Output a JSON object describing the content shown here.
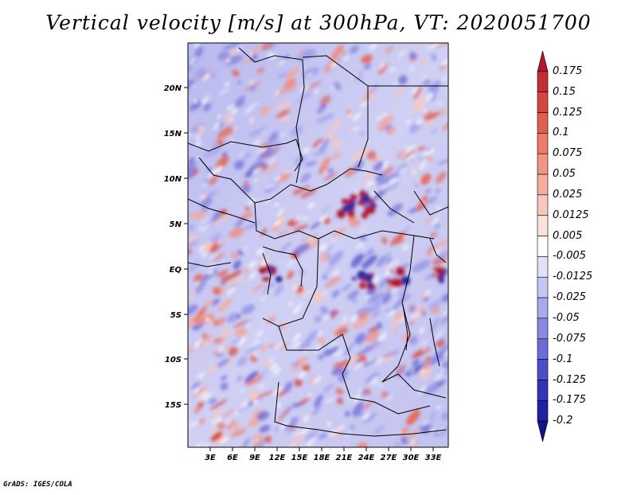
{
  "title": "Vertical velocity [m/s] at 300hPa, VT: 2020051700",
  "footer": "GrADS: IGES/COLA",
  "map": {
    "lat_labels": [
      "20N",
      "15N",
      "10N",
      "5N",
      "EQ",
      "5S",
      "10S",
      "15S"
    ],
    "lon_labels": [
      "3E",
      "6E",
      "9E",
      "12E",
      "15E",
      "18E",
      "21E",
      "24E",
      "27E",
      "30E",
      "33E"
    ]
  },
  "colorbar": {
    "labels": [
      "0.175",
      "0.15",
      "0.125",
      "0.1",
      "0.075",
      "0.05",
      "0.025",
      "0.0125",
      "0.005",
      "-0.005",
      "-0.0125",
      "-0.025",
      "-0.05",
      "-0.075",
      "-0.1",
      "-0.125",
      "-0.175",
      "-0.2"
    ],
    "colors": [
      "#b2182b",
      "#c42d33",
      "#d6463f",
      "#e0604e",
      "#ea7d6a",
      "#f09484",
      "#f4ad9f",
      "#f8c8bd",
      "#fbe3dc",
      "#ffffff",
      "#e0e0fb",
      "#c6c6f5",
      "#a8a8ee",
      "#8a8ae4",
      "#6c6cd9",
      "#4e4ecb",
      "#3434b7",
      "#2020a0",
      "#12128a"
    ]
  }
}
